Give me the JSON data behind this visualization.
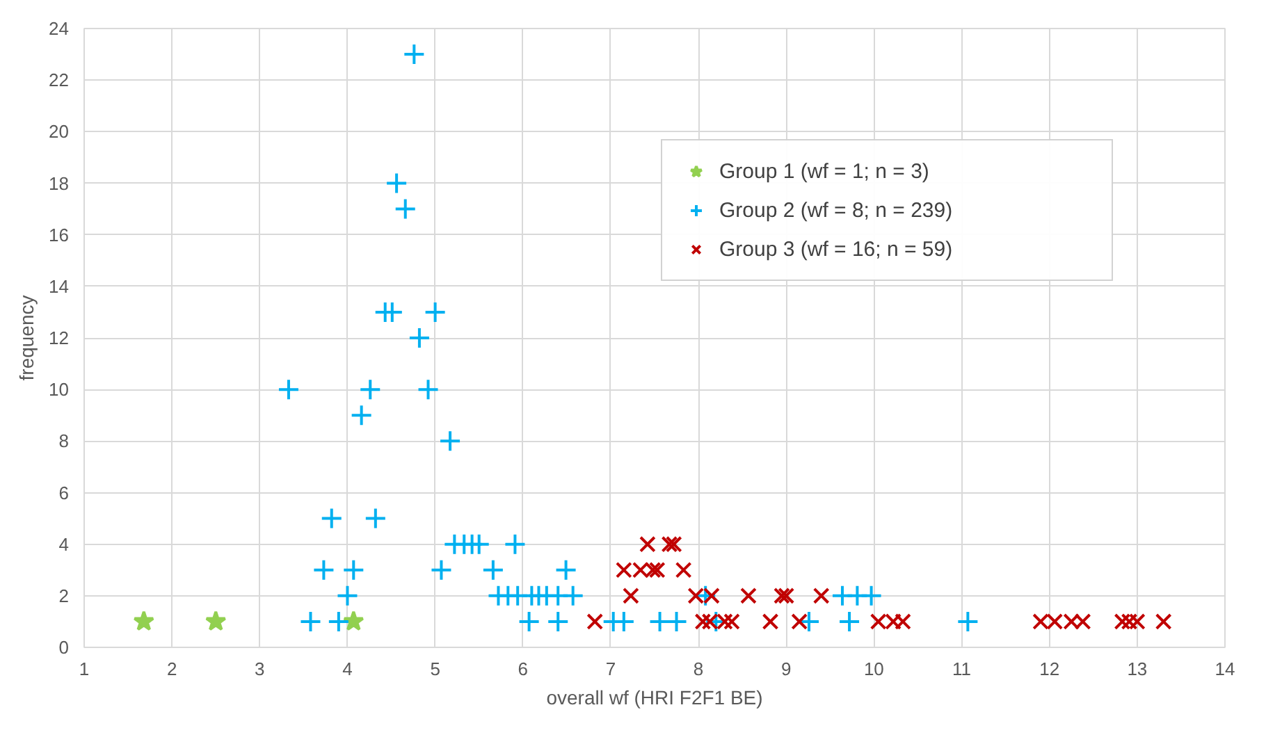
{
  "chart_data": {
    "type": "scatter",
    "xlabel": "overall wf (HRI F2F1 BE)",
    "ylabel": "frequency",
    "xlim": [
      1,
      14
    ],
    "ylim": [
      0,
      24
    ],
    "xticks": [
      1,
      2,
      3,
      4,
      5,
      6,
      7,
      8,
      9,
      10,
      11,
      12,
      13,
      14
    ],
    "yticks": [
      0,
      2,
      4,
      6,
      8,
      10,
      12,
      14,
      16,
      18,
      20,
      22,
      24
    ],
    "grid": true,
    "legend": "top right",
    "series": [
      {
        "name": "Group 1 (wf = 1; n = 3)",
        "color": "#92d050",
        "marker": "star",
        "x": [
          1.68,
          2.5,
          4.07
        ],
        "values": [
          1,
          1,
          1
        ]
      },
      {
        "name": "Group 2 (wf = 8; n = 239)",
        "color": "#00b0f0",
        "marker": "cross",
        "x": [
          4.76,
          4.56,
          4.66,
          4.43,
          4.51,
          5.0,
          4.82,
          3.33,
          4.26,
          4.92,
          4.16,
          5.17,
          3.82,
          4.32,
          3.73,
          4.07,
          5.07,
          5.66,
          6.49,
          4.0,
          3.58,
          3.9,
          5.22,
          5.33,
          5.42,
          5.5,
          5.91,
          5.72,
          5.83,
          5.94,
          6.1,
          6.18,
          6.27,
          6.4,
          6.57,
          6.07,
          6.4,
          7.03,
          7.15,
          7.56,
          7.75,
          8.08,
          8.2,
          9.26,
          9.64,
          9.81,
          9.97,
          9.72,
          10.27,
          11.07
        ],
        "values": [
          23,
          18,
          17,
          13,
          13,
          13,
          12,
          10,
          10,
          10,
          9,
          8,
          5,
          5,
          3,
          3,
          3,
          3,
          3,
          2,
          1,
          1,
          4,
          4,
          4,
          4,
          4,
          2,
          2,
          2,
          2,
          2,
          2,
          2,
          2,
          1,
          1,
          1,
          1,
          1,
          1,
          2,
          1,
          1,
          2,
          2,
          2,
          1,
          null,
          1
        ]
      },
      {
        "name": "Group 3 (wf = 16; n = 59)",
        "color": "#c00000",
        "marker": "x",
        "x": [
          7.42,
          7.67,
          7.72,
          7.15,
          7.34,
          7.48,
          7.53,
          7.83,
          7.23,
          7.97,
          8.15,
          8.57,
          8.95,
          9.0,
          9.4,
          6.82,
          8.05,
          8.13,
          8.3,
          8.38,
          8.82,
          9.15,
          10.05,
          10.22,
          10.33,
          11.9,
          12.06,
          12.25,
          12.38,
          12.83,
          12.91,
          13.0,
          13.3
        ],
        "values": [
          4,
          4,
          4,
          3,
          3,
          3,
          3,
          3,
          2,
          2,
          2,
          2,
          2,
          2,
          2,
          1,
          1,
          1,
          1,
          1,
          1,
          1,
          1,
          1,
          1,
          1,
          1,
          1,
          1,
          1,
          1,
          1,
          1
        ]
      }
    ]
  }
}
